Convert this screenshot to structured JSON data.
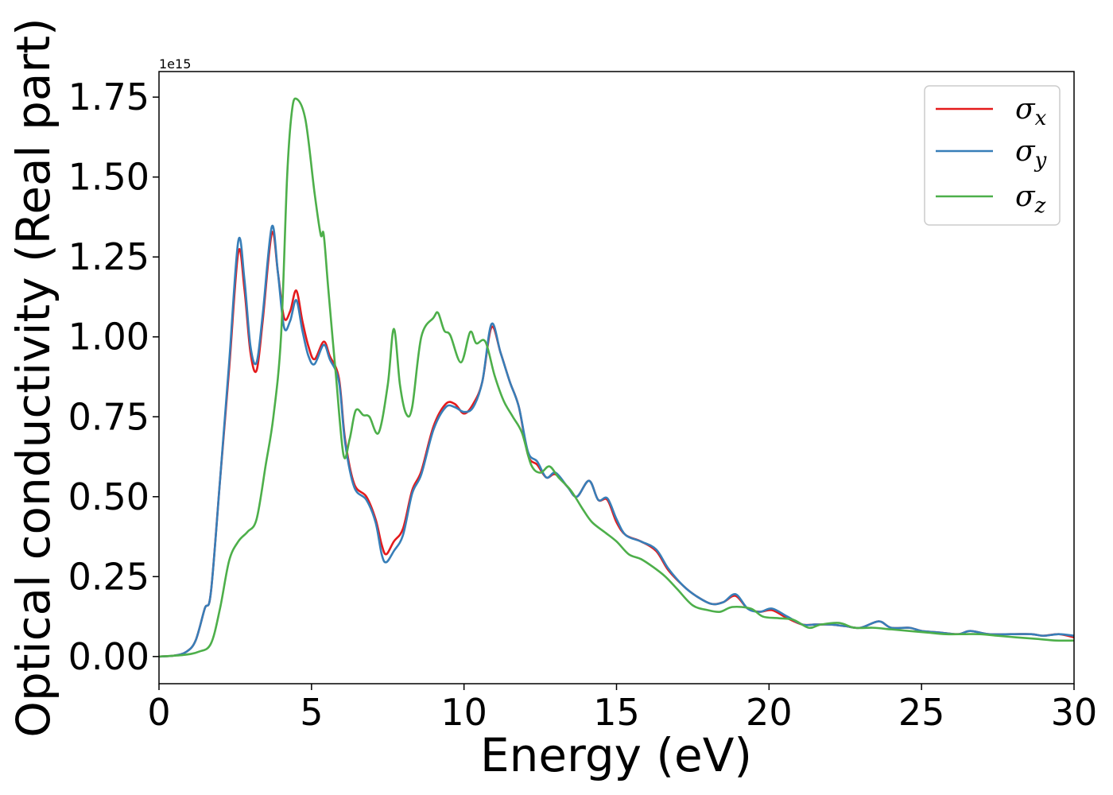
{
  "chart_data": {
    "type": "line",
    "xlabel": "Energy (eV)",
    "ylabel": "Optical conductivity (Real part)",
    "y_offset_label": "1e15",
    "xlim": [
      0,
      30
    ],
    "ylim": [
      -0.085,
      1.83
    ],
    "x_ticks": [
      0,
      5,
      10,
      15,
      20,
      25,
      30
    ],
    "x_tick_labels": [
      "0",
      "5",
      "10",
      "15",
      "20",
      "25",
      "30"
    ],
    "y_ticks": [
      0.0,
      0.25,
      0.5,
      0.75,
      1.0,
      1.25,
      1.5,
      1.75
    ],
    "y_tick_labels": [
      "0.00",
      "0.25",
      "0.50",
      "0.75",
      "1.00",
      "1.25",
      "1.50",
      "1.75"
    ],
    "grid": false,
    "legend_position": "top-right",
    "series": [
      {
        "name": "σx",
        "symbol": "σ",
        "subscript": "x",
        "color": "#e41a1c",
        "points": [
          [
            0,
            0
          ],
          [
            0.5,
            0.003
          ],
          [
            0.9,
            0.015
          ],
          [
            1.2,
            0.05
          ],
          [
            1.5,
            0.15
          ],
          [
            1.7,
            0.2
          ],
          [
            2.0,
            0.55
          ],
          [
            2.3,
            0.9
          ],
          [
            2.6,
            1.265
          ],
          [
            2.8,
            1.15
          ],
          [
            3.0,
            0.95
          ],
          [
            3.2,
            0.895
          ],
          [
            3.4,
            1.05
          ],
          [
            3.7,
            1.325
          ],
          [
            3.9,
            1.2
          ],
          [
            4.1,
            1.06
          ],
          [
            4.3,
            1.08
          ],
          [
            4.5,
            1.145
          ],
          [
            4.7,
            1.05
          ],
          [
            4.9,
            0.97
          ],
          [
            5.1,
            0.93
          ],
          [
            5.4,
            0.985
          ],
          [
            5.6,
            0.94
          ],
          [
            5.9,
            0.87
          ],
          [
            6.1,
            0.68
          ],
          [
            6.4,
            0.54
          ],
          [
            6.8,
            0.5
          ],
          [
            7.1,
            0.43
          ],
          [
            7.3,
            0.35
          ],
          [
            7.45,
            0.32
          ],
          [
            7.7,
            0.36
          ],
          [
            8.0,
            0.4
          ],
          [
            8.3,
            0.52
          ],
          [
            8.6,
            0.58
          ],
          [
            9.0,
            0.72
          ],
          [
            9.4,
            0.79
          ],
          [
            9.7,
            0.79
          ],
          [
            10.0,
            0.76
          ],
          [
            10.3,
            0.79
          ],
          [
            10.6,
            0.86
          ],
          [
            10.9,
            1.03
          ],
          [
            11.2,
            0.95
          ],
          [
            11.5,
            0.86
          ],
          [
            11.8,
            0.78
          ],
          [
            12.1,
            0.63
          ],
          [
            12.4,
            0.6
          ],
          [
            12.7,
            0.56
          ],
          [
            13.0,
            0.57
          ],
          [
            13.4,
            0.53
          ],
          [
            13.7,
            0.5
          ],
          [
            14.1,
            0.55
          ],
          [
            14.4,
            0.49
          ],
          [
            14.7,
            0.49
          ],
          [
            15.0,
            0.42
          ],
          [
            15.3,
            0.38
          ],
          [
            15.8,
            0.36
          ],
          [
            16.3,
            0.33
          ],
          [
            16.7,
            0.27
          ],
          [
            17.2,
            0.22
          ],
          [
            17.6,
            0.19
          ],
          [
            18.1,
            0.165
          ],
          [
            18.5,
            0.17
          ],
          [
            18.9,
            0.19
          ],
          [
            19.3,
            0.15
          ],
          [
            19.7,
            0.14
          ],
          [
            20.1,
            0.145
          ],
          [
            20.6,
            0.12
          ],
          [
            21.1,
            0.1
          ],
          [
            21.5,
            0.1
          ],
          [
            22.0,
            0.1
          ],
          [
            22.5,
            0.095
          ],
          [
            23.0,
            0.09
          ],
          [
            23.6,
            0.11
          ],
          [
            24.0,
            0.09
          ],
          [
            24.6,
            0.09
          ],
          [
            25.0,
            0.08
          ],
          [
            25.6,
            0.075
          ],
          [
            26.2,
            0.07
          ],
          [
            26.6,
            0.08
          ],
          [
            27.2,
            0.07
          ],
          [
            28.0,
            0.07
          ],
          [
            28.6,
            0.07
          ],
          [
            29.0,
            0.065
          ],
          [
            29.5,
            0.07
          ],
          [
            30.0,
            0.06
          ]
        ]
      },
      {
        "name": "σy",
        "symbol": "σ",
        "subscript": "y",
        "color": "#377eb8",
        "points": [
          [
            0,
            0
          ],
          [
            0.5,
            0.003
          ],
          [
            0.9,
            0.015
          ],
          [
            1.2,
            0.05
          ],
          [
            1.5,
            0.15
          ],
          [
            1.7,
            0.2
          ],
          [
            2.0,
            0.55
          ],
          [
            2.3,
            0.92
          ],
          [
            2.6,
            1.3
          ],
          [
            2.8,
            1.18
          ],
          [
            3.0,
            0.97
          ],
          [
            3.2,
            0.92
          ],
          [
            3.4,
            1.07
          ],
          [
            3.7,
            1.345
          ],
          [
            3.9,
            1.2
          ],
          [
            4.1,
            1.03
          ],
          [
            4.3,
            1.05
          ],
          [
            4.5,
            1.115
          ],
          [
            4.7,
            1.02
          ],
          [
            4.9,
            0.94
          ],
          [
            5.1,
            0.915
          ],
          [
            5.4,
            0.975
          ],
          [
            5.6,
            0.93
          ],
          [
            5.9,
            0.86
          ],
          [
            6.1,
            0.67
          ],
          [
            6.4,
            0.53
          ],
          [
            6.8,
            0.49
          ],
          [
            7.1,
            0.42
          ],
          [
            7.3,
            0.32
          ],
          [
            7.45,
            0.295
          ],
          [
            7.7,
            0.33
          ],
          [
            8.0,
            0.38
          ],
          [
            8.3,
            0.51
          ],
          [
            8.6,
            0.57
          ],
          [
            9.0,
            0.71
          ],
          [
            9.4,
            0.78
          ],
          [
            9.7,
            0.78
          ],
          [
            10.0,
            0.765
          ],
          [
            10.3,
            0.78
          ],
          [
            10.6,
            0.86
          ],
          [
            10.9,
            1.04
          ],
          [
            11.2,
            0.95
          ],
          [
            11.5,
            0.86
          ],
          [
            11.8,
            0.78
          ],
          [
            12.1,
            0.64
          ],
          [
            12.4,
            0.61
          ],
          [
            12.7,
            0.56
          ],
          [
            13.0,
            0.575
          ],
          [
            13.4,
            0.53
          ],
          [
            13.7,
            0.5
          ],
          [
            14.1,
            0.55
          ],
          [
            14.4,
            0.49
          ],
          [
            14.7,
            0.495
          ],
          [
            15.0,
            0.43
          ],
          [
            15.3,
            0.38
          ],
          [
            15.8,
            0.36
          ],
          [
            16.3,
            0.335
          ],
          [
            16.7,
            0.275
          ],
          [
            17.2,
            0.22
          ],
          [
            17.6,
            0.19
          ],
          [
            18.1,
            0.165
          ],
          [
            18.5,
            0.17
          ],
          [
            18.9,
            0.195
          ],
          [
            19.3,
            0.15
          ],
          [
            19.7,
            0.14
          ],
          [
            20.1,
            0.15
          ],
          [
            20.6,
            0.125
          ],
          [
            21.1,
            0.1
          ],
          [
            21.5,
            0.1
          ],
          [
            22.0,
            0.1
          ],
          [
            22.5,
            0.095
          ],
          [
            23.0,
            0.09
          ],
          [
            23.6,
            0.11
          ],
          [
            24.0,
            0.09
          ],
          [
            24.6,
            0.09
          ],
          [
            25.0,
            0.08
          ],
          [
            25.6,
            0.075
          ],
          [
            26.2,
            0.07
          ],
          [
            26.6,
            0.08
          ],
          [
            27.2,
            0.07
          ],
          [
            28.0,
            0.07
          ],
          [
            28.6,
            0.07
          ],
          [
            29.0,
            0.065
          ],
          [
            29.5,
            0.07
          ],
          [
            30.0,
            0.065
          ]
        ]
      },
      {
        "name": "σz",
        "symbol": "σ",
        "subscript": "z",
        "color": "#4daf4a",
        "points": [
          [
            0,
            0
          ],
          [
            0.8,
            0.005
          ],
          [
            1.3,
            0.015
          ],
          [
            1.7,
            0.04
          ],
          [
            2.0,
            0.15
          ],
          [
            2.3,
            0.3
          ],
          [
            2.6,
            0.36
          ],
          [
            2.9,
            0.39
          ],
          [
            3.2,
            0.43
          ],
          [
            3.5,
            0.6
          ],
          [
            3.75,
            0.75
          ],
          [
            4.0,
            1.0
          ],
          [
            4.2,
            1.5
          ],
          [
            4.35,
            1.7
          ],
          [
            4.5,
            1.745
          ],
          [
            4.8,
            1.68
          ],
          [
            5.1,
            1.45
          ],
          [
            5.3,
            1.32
          ],
          [
            5.4,
            1.32
          ],
          [
            5.55,
            1.15
          ],
          [
            5.8,
            0.88
          ],
          [
            6.05,
            0.63
          ],
          [
            6.25,
            0.68
          ],
          [
            6.45,
            0.77
          ],
          [
            6.7,
            0.755
          ],
          [
            6.9,
            0.75
          ],
          [
            7.2,
            0.7
          ],
          [
            7.5,
            0.85
          ],
          [
            7.7,
            1.025
          ],
          [
            7.9,
            0.85
          ],
          [
            8.1,
            0.76
          ],
          [
            8.3,
            0.78
          ],
          [
            8.6,
            1.0
          ],
          [
            9.0,
            1.06
          ],
          [
            9.15,
            1.075
          ],
          [
            9.35,
            1.02
          ],
          [
            9.55,
            1.005
          ],
          [
            9.9,
            0.92
          ],
          [
            10.2,
            1.015
          ],
          [
            10.4,
            0.98
          ],
          [
            10.7,
            0.985
          ],
          [
            11.0,
            0.88
          ],
          [
            11.3,
            0.8
          ],
          [
            11.6,
            0.75
          ],
          [
            11.9,
            0.7
          ],
          [
            12.2,
            0.6
          ],
          [
            12.5,
            0.575
          ],
          [
            12.8,
            0.595
          ],
          [
            13.1,
            0.56
          ],
          [
            13.5,
            0.52
          ],
          [
            13.9,
            0.46
          ],
          [
            14.2,
            0.42
          ],
          [
            14.6,
            0.39
          ],
          [
            15.0,
            0.36
          ],
          [
            15.4,
            0.32
          ],
          [
            15.8,
            0.305
          ],
          [
            16.2,
            0.28
          ],
          [
            16.6,
            0.25
          ],
          [
            17.0,
            0.21
          ],
          [
            17.5,
            0.16
          ],
          [
            18.0,
            0.145
          ],
          [
            18.4,
            0.14
          ],
          [
            18.8,
            0.155
          ],
          [
            19.4,
            0.15
          ],
          [
            19.8,
            0.125
          ],
          [
            20.3,
            0.12
          ],
          [
            20.8,
            0.115
          ],
          [
            21.3,
            0.09
          ],
          [
            21.7,
            0.1
          ],
          [
            22.3,
            0.105
          ],
          [
            22.8,
            0.09
          ],
          [
            23.4,
            0.09
          ],
          [
            24.0,
            0.085
          ],
          [
            24.6,
            0.08
          ],
          [
            25.2,
            0.075
          ],
          [
            25.8,
            0.07
          ],
          [
            26.4,
            0.07
          ],
          [
            26.9,
            0.07
          ],
          [
            27.5,
            0.065
          ],
          [
            28.1,
            0.06
          ],
          [
            28.8,
            0.055
          ],
          [
            29.4,
            0.05
          ],
          [
            30.0,
            0.05
          ]
        ]
      }
    ]
  }
}
